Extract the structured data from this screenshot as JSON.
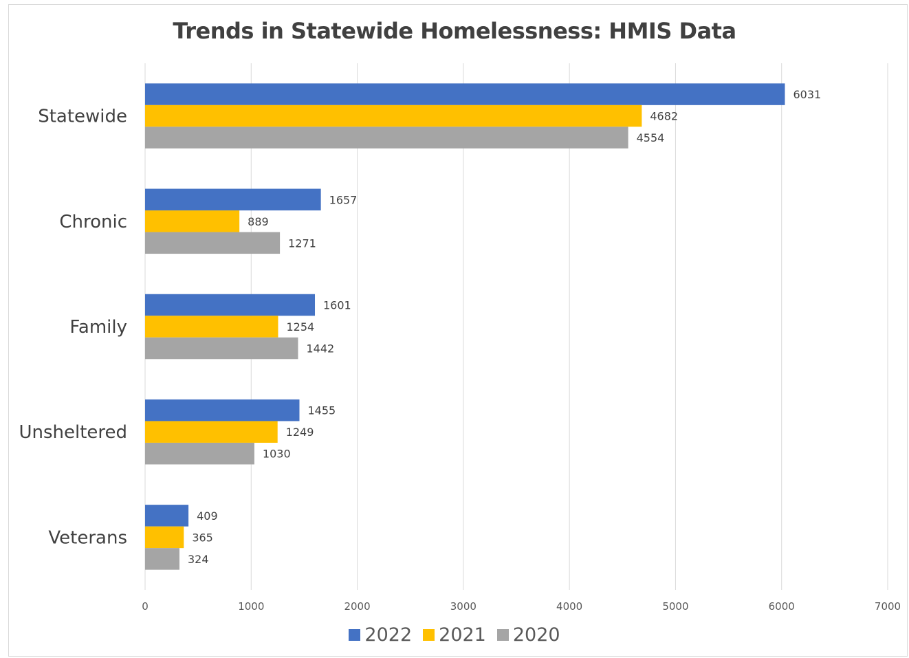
{
  "chart_data": {
    "type": "bar",
    "orientation": "horizontal",
    "title": "Trends in Statewide Homelessness: HMIS Data",
    "categories": [
      "Statewide",
      "Chronic",
      "Family",
      "Unsheltered",
      "Veterans"
    ],
    "series": [
      {
        "name": "2022",
        "color": "#4472c4",
        "values": [
          6031,
          1657,
          1601,
          1455,
          409
        ]
      },
      {
        "name": "2021",
        "color": "#ffc000",
        "values": [
          4682,
          889,
          1254,
          1249,
          365
        ]
      },
      {
        "name": "2020",
        "color": "#a5a5a5",
        "values": [
          4554,
          1271,
          1442,
          1030,
          324
        ]
      }
    ],
    "xlim": [
      0,
      7000
    ],
    "xticks": [
      "0",
      "1000",
      "2000",
      "3000",
      "4000",
      "5000",
      "6000",
      "7000"
    ],
    "grid": "vertical",
    "legend_position": "bottom",
    "data_labels": true
  }
}
